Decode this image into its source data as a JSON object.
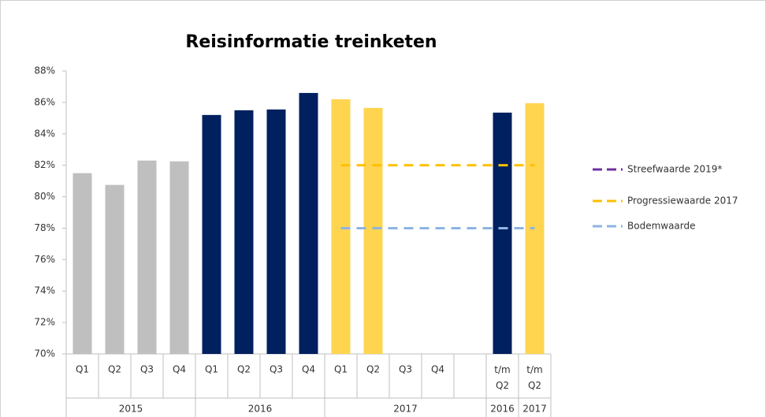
{
  "chart_data": {
    "type": "bar",
    "title": "Reisinformatie treinketen",
    "categories": [
      "Q1",
      "Q2",
      "Q3",
      "Q4",
      "Q1",
      "Q2",
      "Q3",
      "Q4",
      "Q1",
      "Q2",
      "Q3",
      "Q4",
      null,
      "t/m Q2",
      "t/m Q2"
    ],
    "groups": [
      {
        "label": "2015",
        "start": 0,
        "end": 3
      },
      {
        "label": "2016",
        "start": 4,
        "end": 7
      },
      {
        "label": "2017",
        "start": 8,
        "end": 12
      },
      {
        "label": "2016",
        "start": 13,
        "end": 13
      },
      {
        "label": "2017",
        "start": 14,
        "end": 14
      }
    ],
    "values": [
      81.5,
      80.75,
      82.3,
      82.25,
      85.2,
      85.5,
      85.55,
      86.6,
      86.2,
      85.65,
      null,
      null,
      null,
      85.35,
      85.95
    ],
    "colors": [
      "#bfbfbf",
      "#bfbfbf",
      "#bfbfbf",
      "#bfbfbf",
      "#002060",
      "#002060",
      "#002060",
      "#002060",
      "#ffd54f",
      "#ffd54f",
      "#ffd54f",
      "#ffd54f",
      "#ffd54f",
      "#002060",
      "#ffd54f"
    ],
    "series": [
      {
        "name": "Streefwaarde 2019*",
        "color": "#7030a0",
        "values": [
          null,
          null,
          null,
          null,
          null,
          null,
          null,
          null,
          null,
          null,
          null,
          null,
          null,
          null,
          null
        ]
      },
      {
        "name": "Progressiewaarde 2017",
        "color": "#ffc000",
        "values": [
          null,
          null,
          null,
          null,
          null,
          null,
          null,
          null,
          82,
          82,
          82,
          82,
          82,
          82,
          82
        ]
      },
      {
        "name": "Bodemwaarde",
        "color": "#8eb4e3",
        "values": [
          null,
          null,
          null,
          null,
          null,
          null,
          null,
          null,
          78,
          78,
          78,
          78,
          78,
          78,
          78
        ]
      }
    ],
    "ylim": [
      70,
      88
    ],
    "yticks": [
      {
        "value": 70,
        "label": "70%"
      },
      {
        "value": 72,
        "label": "72%"
      },
      {
        "value": 74,
        "label": "74%"
      },
      {
        "value": 76,
        "label": "76%"
      },
      {
        "value": 78,
        "label": "78%"
      },
      {
        "value": 80,
        "label": "80%"
      },
      {
        "value": 82,
        "label": "82%"
      },
      {
        "value": 84,
        "label": "84%"
      },
      {
        "value": 86,
        "label": "86%"
      },
      {
        "value": 88,
        "label": "88%"
      }
    ],
    "grid": false,
    "legend": "right"
  }
}
